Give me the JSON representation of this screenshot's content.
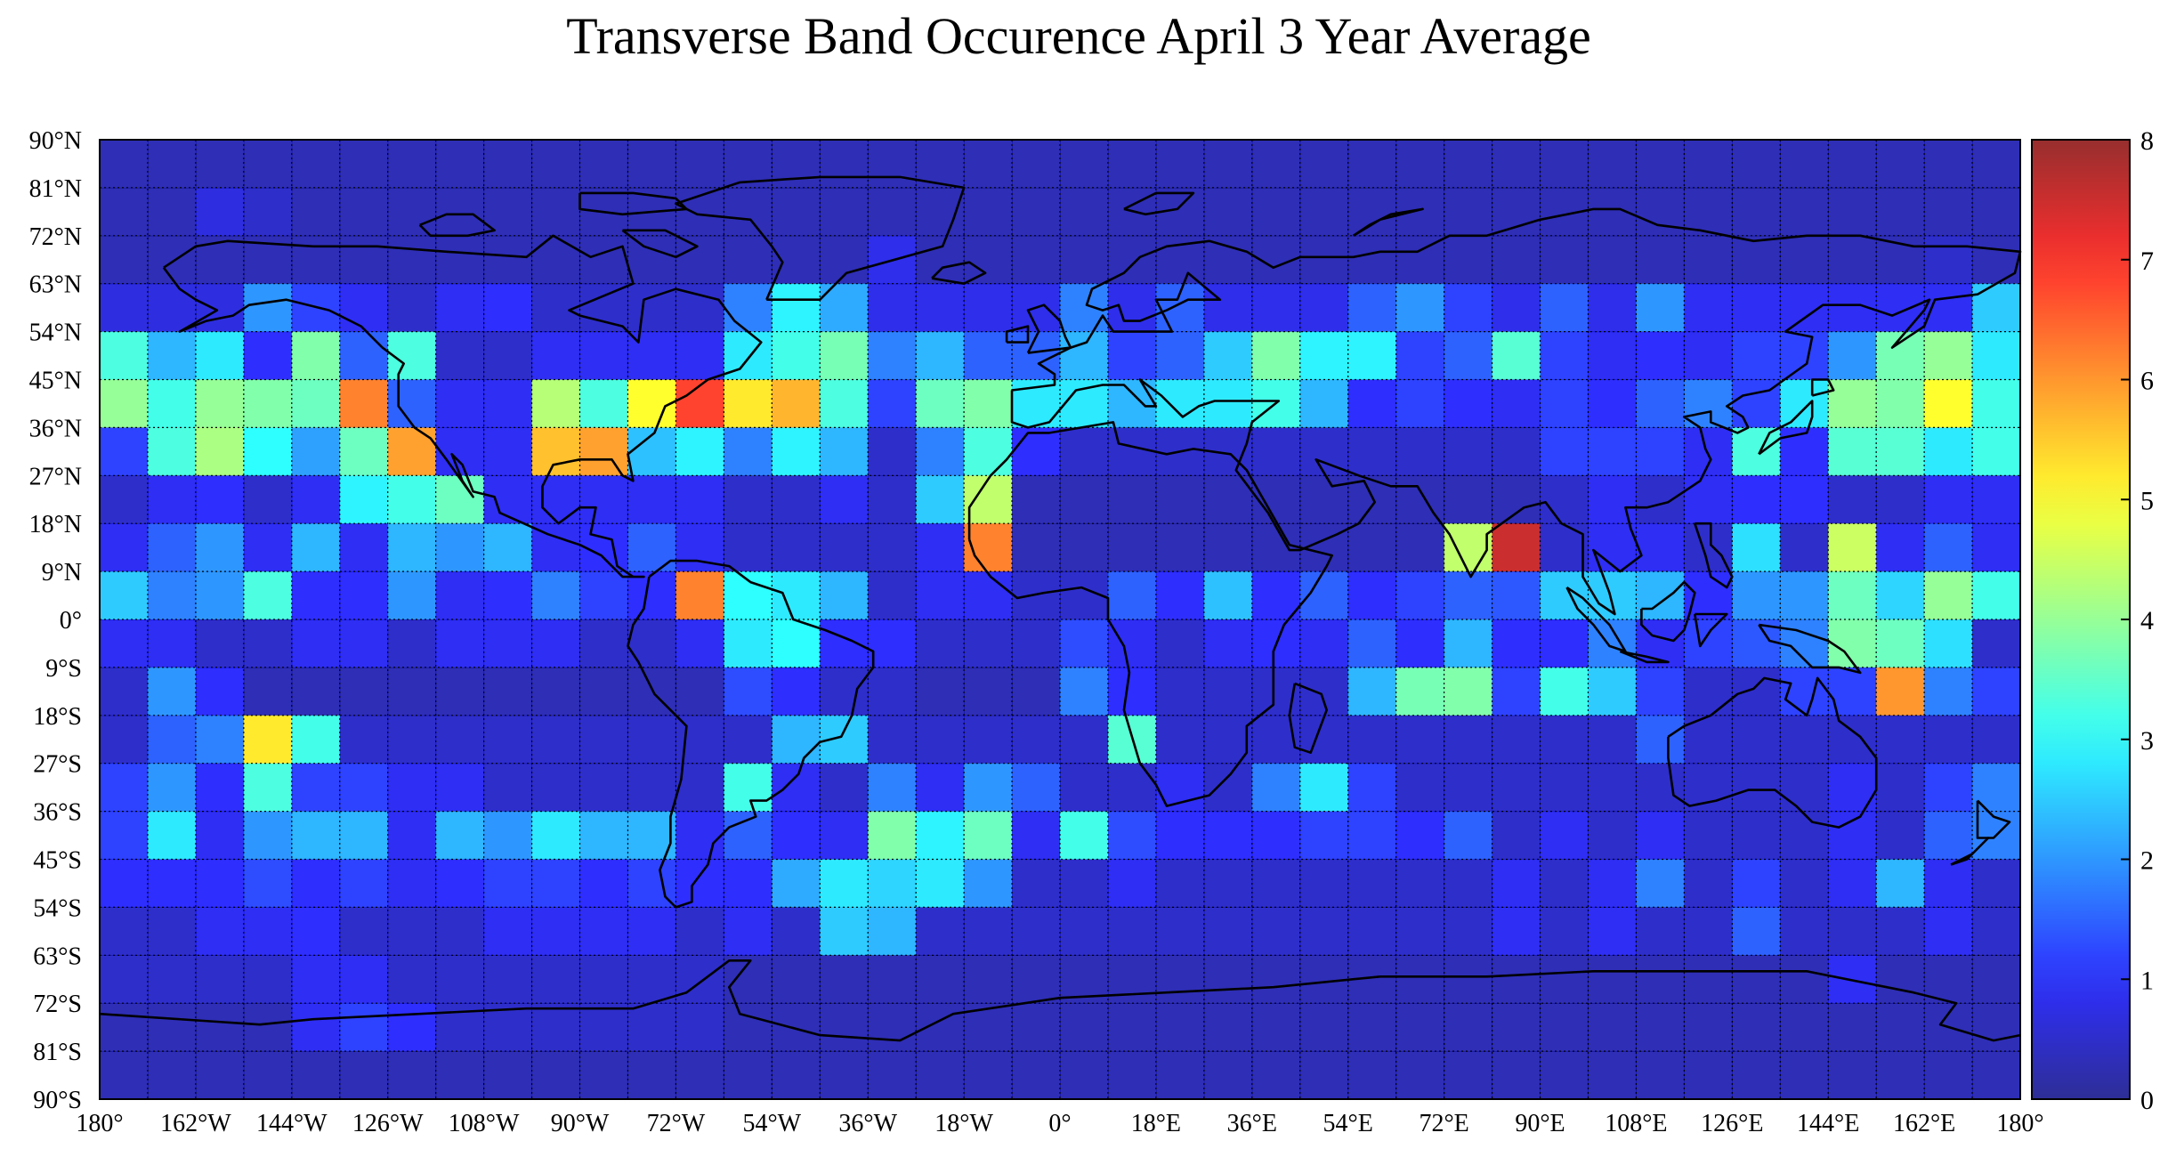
{
  "chart_data": {
    "type": "heatmap",
    "title": "Transverse Band Occurence April 3 Year Average",
    "xlabel": "",
    "ylabel": "",
    "x_range": [
      -180,
      180
    ],
    "y_range": [
      -90,
      90
    ],
    "cell_size_deg": 9,
    "x_tick_labels": [
      "180°",
      "162°W",
      "144°W",
      "126°W",
      "108°W",
      "90°W",
      "72°W",
      "54°W",
      "36°W",
      "18°W",
      "0°",
      "18°E",
      "36°E",
      "54°E",
      "72°E",
      "90°E",
      "108°E",
      "126°E",
      "144°E",
      "162°E",
      "180°"
    ],
    "y_tick_labels": [
      "90°N",
      "81°N",
      "72°N",
      "63°N",
      "54°N",
      "45°N",
      "36°N",
      "27°N",
      "18°N",
      "9°N",
      "0°",
      "9°S",
      "18°S",
      "27°S",
      "36°S",
      "45°S",
      "54°S",
      "63°S",
      "72°S",
      "81°S",
      "90°S"
    ],
    "colorbar": {
      "min": 0,
      "max": 8,
      "ticks": [
        "0",
        "1",
        "2",
        "3",
        "4",
        "5",
        "6",
        "7",
        "8"
      ],
      "colormap": "jet"
    },
    "rows_from_north": [
      [
        0.3,
        0.3,
        0.3,
        0.3,
        0.3,
        0.3,
        0.3,
        0.3,
        0.3,
        0.3,
        0.3,
        0.3,
        0.3,
        0.3,
        0.3,
        0.3,
        0.3,
        0.3,
        0.3,
        0.3,
        0.3,
        0.3,
        0.3,
        0.3,
        0.3,
        0.3,
        0.3,
        0.3,
        0.3,
        0.3,
        0.3,
        0.3,
        0.3,
        0.3,
        0.3,
        0.3,
        0.3,
        0.3,
        0.3,
        0.3
      ],
      [
        0.3,
        0.3,
        0.7,
        0.5,
        0.3,
        0.3,
        0.3,
        0.3,
        0.3,
        0.3,
        0.3,
        0.3,
        0.3,
        0.3,
        0.3,
        0.3,
        0.3,
        0.3,
        0.3,
        0.3,
        0.3,
        0.3,
        0.3,
        0.3,
        0.3,
        0.3,
        0.3,
        0.3,
        0.3,
        0.3,
        0.3,
        0.3,
        0.3,
        0.3,
        0.3,
        0.3,
        0.3,
        0.3,
        0.3,
        0.3
      ],
      [
        0.3,
        0.3,
        0.3,
        0.3,
        0.3,
        0.3,
        0.3,
        0.3,
        0.3,
        0.3,
        0.3,
        0.3,
        0.3,
        0.3,
        0.3,
        0.3,
        0.8,
        0.3,
        0.3,
        0.3,
        0.3,
        0.3,
        0.3,
        0.3,
        0.3,
        0.3,
        0.3,
        0.3,
        0.3,
        0.3,
        0.3,
        0.3,
        0.3,
        0.3,
        0.3,
        0.3,
        0.3,
        0.3,
        0.5,
        0.3
      ],
      [
        0.7,
        0.7,
        0.7,
        2.0,
        1.2,
        0.9,
        0.5,
        0.9,
        1.0,
        0.5,
        0.5,
        0.5,
        0.5,
        1.8,
        2.9,
        2.2,
        0.8,
        0.8,
        0.8,
        0.8,
        1.8,
        0.8,
        1.5,
        0.8,
        0.8,
        0.8,
        1.5,
        2.0,
        1.2,
        0.8,
        1.5,
        0.8,
        2.0,
        0.9,
        0.9,
        0.9,
        0.9,
        0.9,
        0.9,
        2.5
      ],
      [
        3.3,
        2.3,
        2.8,
        1.0,
        3.8,
        1.5,
        3.3,
        0.5,
        0.5,
        0.9,
        0.9,
        0.9,
        0.9,
        2.8,
        3.2,
        3.7,
        1.8,
        2.3,
        1.5,
        1.5,
        2.3,
        1.2,
        1.5,
        2.5,
        3.8,
        2.9,
        2.9,
        1.2,
        1.5,
        3.4,
        1.2,
        0.9,
        1.0,
        0.9,
        1.2,
        1.2,
        2.0,
        3.7,
        4.0,
        2.8
      ],
      [
        4.0,
        3.2,
        4.0,
        3.8,
        3.6,
        6.2,
        1.5,
        0.9,
        0.9,
        4.3,
        3.3,
        5.0,
        6.8,
        5.2,
        5.7,
        3.3,
        1.2,
        3.6,
        3.8,
        2.8,
        2.8,
        2.3,
        2.8,
        2.8,
        3.2,
        2.3,
        1.0,
        1.2,
        1.0,
        0.9,
        1.2,
        1.0,
        1.5,
        1.8,
        1.2,
        2.8,
        4.0,
        3.8,
        5.0,
        3.2
      ],
      [
        1.2,
        3.3,
        4.2,
        3.0,
        2.1,
        3.6,
        5.9,
        0.9,
        0.9,
        5.6,
        5.9,
        2.4,
        2.9,
        1.8,
        2.9,
        2.3,
        0.5,
        1.8,
        3.3,
        1.0,
        0.5,
        0.5,
        0.5,
        0.5,
        0.5,
        0.5,
        0.5,
        0.5,
        0.5,
        0.5,
        1.2,
        1.2,
        1.2,
        0.9,
        3.3,
        1.0,
        3.4,
        3.4,
        2.8,
        3.2
      ],
      [
        0.5,
        0.9,
        1.0,
        0.5,
        0.9,
        2.9,
        3.2,
        3.6,
        0.9,
        0.9,
        0.9,
        0.9,
        0.9,
        0.5,
        0.5,
        0.9,
        0.5,
        2.5,
        4.4,
        0.3,
        0.3,
        0.3,
        0.3,
        0.3,
        0.3,
        0.3,
        0.3,
        0.3,
        0.3,
        0.3,
        0.5,
        0.9,
        0.5,
        0.9,
        1.0,
        1.0,
        0.5,
        0.5,
        0.9,
        0.9
      ],
      [
        0.9,
        1.5,
        2.0,
        0.9,
        2.3,
        0.9,
        2.3,
        2.0,
        2.3,
        0.9,
        1.0,
        1.5,
        0.9,
        0.5,
        0.5,
        0.5,
        0.5,
        0.9,
        6.2,
        0.3,
        0.3,
        0.3,
        0.3,
        0.3,
        0.3,
        0.3,
        0.3,
        0.3,
        4.4,
        7.5,
        0.5,
        0.9,
        0.9,
        0.5,
        2.7,
        0.5,
        4.5,
        0.9,
        1.5,
        0.9
      ],
      [
        2.5,
        1.8,
        2.0,
        3.3,
        1.0,
        1.0,
        2.0,
        0.9,
        1.0,
        1.8,
        1.2,
        1.0,
        6.2,
        3.0,
        2.8,
        2.3,
        0.5,
        0.9,
        0.9,
        0.5,
        0.5,
        1.5,
        1.0,
        2.4,
        1.0,
        1.5,
        1.0,
        1.2,
        1.5,
        1.4,
        2.5,
        2.5,
        2.3,
        1.0,
        2.0,
        2.0,
        3.6,
        2.6,
        4.0,
        3.2
      ],
      [
        0.9,
        0.9,
        0.5,
        0.5,
        0.9,
        0.9,
        0.5,
        0.9,
        0.9,
        0.9,
        0.5,
        0.5,
        0.9,
        2.8,
        3.0,
        1.0,
        1.0,
        0.5,
        0.5,
        0.5,
        1.3,
        0.9,
        0.5,
        0.9,
        1.0,
        0.9,
        1.5,
        1.0,
        2.3,
        1.0,
        1.0,
        1.8,
        0.9,
        1.2,
        1.4,
        1.8,
        3.8,
        3.6,
        2.7,
        0.5
      ],
      [
        0.5,
        2.0,
        1.0,
        0.3,
        0.3,
        0.3,
        0.3,
        0.3,
        0.3,
        0.3,
        0.3,
        0.3,
        0.3,
        1.3,
        1.0,
        0.5,
        0.5,
        0.3,
        0.3,
        0.3,
        1.8,
        1.0,
        0.5,
        0.5,
        0.5,
        0.5,
        2.3,
        3.7,
        3.8,
        1.2,
        3.2,
        2.5,
        1.2,
        0.5,
        0.5,
        1.2,
        1.2,
        6.0,
        1.8,
        1.2
      ],
      [
        0.5,
        1.5,
        1.8,
        5.2,
        3.2,
        0.5,
        0.5,
        0.5,
        0.5,
        0.5,
        0.5,
        0.5,
        0.5,
        0.5,
        2.3,
        2.5,
        0.5,
        0.5,
        0.5,
        0.5,
        0.5,
        3.4,
        0.5,
        0.5,
        0.5,
        0.5,
        0.5,
        0.5,
        0.5,
        0.5,
        0.5,
        0.5,
        1.5,
        0.5,
        0.5,
        0.5,
        0.5,
        0.5,
        0.5,
        0.5
      ],
      [
        1.2,
        2.0,
        1.0,
        3.3,
        1.2,
        1.2,
        0.9,
        0.9,
        0.5,
        0.5,
        0.5,
        0.5,
        0.5,
        3.2,
        0.9,
        0.5,
        1.8,
        0.9,
        2.0,
        1.5,
        0.5,
        0.5,
        0.9,
        0.5,
        1.8,
        2.8,
        1.2,
        0.5,
        0.5,
        0.5,
        0.5,
        0.5,
        0.5,
        0.5,
        0.5,
        0.5,
        0.9,
        0.5,
        1.2,
        1.8
      ],
      [
        1.2,
        2.8,
        0.9,
        2.0,
        2.3,
        2.3,
        0.9,
        2.3,
        2.0,
        2.8,
        2.3,
        2.3,
        0.9,
        1.5,
        1.0,
        0.9,
        3.8,
        2.9,
        3.6,
        0.9,
        3.2,
        1.3,
        1.0,
        1.0,
        1.0,
        1.2,
        1.2,
        1.0,
        1.5,
        0.5,
        0.9,
        0.5,
        0.9,
        0.5,
        0.5,
        0.5,
        0.9,
        0.5,
        1.5,
        1.8
      ],
      [
        1.0,
        1.0,
        1.0,
        1.3,
        1.0,
        1.2,
        0.9,
        1.0,
        1.2,
        1.2,
        1.0,
        1.2,
        1.0,
        1.0,
        2.2,
        2.8,
        2.6,
        2.8,
        2.0,
        0.5,
        0.5,
        0.9,
        0.5,
        0.5,
        0.5,
        0.5,
        0.5,
        0.5,
        0.5,
        0.9,
        0.5,
        0.9,
        1.8,
        0.5,
        1.2,
        0.5,
        0.9,
        2.3,
        0.9,
        0.5
      ],
      [
        0.5,
        0.5,
        0.9,
        0.9,
        1.0,
        0.5,
        0.5,
        0.5,
        0.9,
        0.9,
        0.9,
        0.9,
        0.5,
        0.9,
        0.5,
        2.5,
        2.3,
        0.5,
        0.5,
        0.5,
        0.5,
        0.5,
        0.5,
        0.5,
        0.5,
        0.5,
        0.5,
        0.5,
        0.5,
        0.9,
        0.5,
        0.9,
        0.5,
        0.5,
        1.5,
        0.5,
        0.5,
        0.5,
        0.9,
        0.5
      ],
      [
        0.5,
        0.5,
        0.5,
        0.5,
        0.9,
        0.9,
        0.5,
        0.5,
        0.5,
        0.5,
        0.5,
        0.5,
        0.5,
        0.3,
        0.3,
        0.3,
        0.3,
        0.3,
        0.3,
        0.3,
        0.3,
        0.3,
        0.3,
        0.3,
        0.3,
        0.3,
        0.3,
        0.3,
        0.3,
        0.3,
        0.3,
        0.3,
        0.3,
        0.3,
        0.3,
        0.3,
        0.9,
        0.3,
        0.3,
        0.3
      ],
      [
        0.3,
        0.3,
        0.3,
        0.3,
        0.9,
        1.2,
        1.0,
        0.5,
        0.5,
        0.5,
        0.5,
        0.5,
        0.5,
        0.3,
        0.3,
        0.3,
        0.3,
        0.3,
        0.3,
        0.3,
        0.3,
        0.3,
        0.3,
        0.3,
        0.3,
        0.3,
        0.3,
        0.3,
        0.3,
        0.3,
        0.3,
        0.3,
        0.3,
        0.3,
        0.3,
        0.3,
        0.3,
        0.3,
        0.3,
        0.3
      ],
      [
        0.3,
        0.3,
        0.3,
        0.3,
        0.3,
        0.3,
        0.3,
        0.3,
        0.3,
        0.3,
        0.3,
        0.3,
        0.3,
        0.3,
        0.3,
        0.3,
        0.3,
        0.3,
        0.3,
        0.3,
        0.3,
        0.3,
        0.3,
        0.3,
        0.3,
        0.3,
        0.3,
        0.3,
        0.3,
        0.3,
        0.3,
        0.3,
        0.3,
        0.3,
        0.3,
        0.3,
        0.3,
        0.3,
        0.3,
        0.3
      ]
    ]
  }
}
